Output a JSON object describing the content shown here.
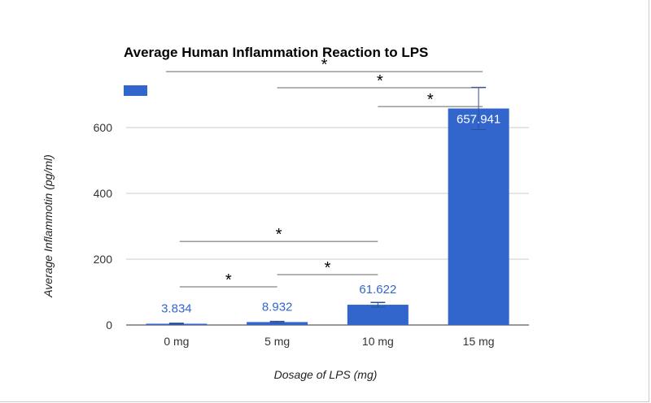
{
  "chart_data": {
    "type": "bar",
    "title": "Average Human Inflammation Reaction to LPS",
    "xlabel": "Dosage of LPS (mg)",
    "ylabel": "Average Inflammotin (pg/ml)",
    "categories": [
      "0 mg",
      "5 mg",
      "10 mg",
      "15 mg"
    ],
    "values": [
      3.834,
      8.932,
      61.622,
      657.941
    ],
    "data_labels": [
      "3.834",
      "8.932",
      "61.622",
      "657.941"
    ],
    "error": [
      1.5,
      2,
      7,
      64
    ],
    "ylim": [
      0,
      700
    ],
    "yticks": [
      0,
      200,
      400,
      600
    ],
    "grid": true,
    "legend": {
      "placement": "top-left",
      "entries": [
        ""
      ]
    },
    "bar_color": "#3366cc",
    "significance": [
      {
        "from": "0 mg",
        "to": "15 mg",
        "y": 770,
        "label": "*"
      },
      {
        "from": "5 mg",
        "to": "15 mg",
        "y": 721,
        "label": "*"
      },
      {
        "from": "10 mg",
        "to": "15 mg",
        "y": 664,
        "label": "*"
      },
      {
        "from": "0 mg",
        "to": "10 mg",
        "y": 254,
        "label": "*"
      },
      {
        "from": "5 mg",
        "to": "10 mg",
        "y": 153,
        "label": "*"
      },
      {
        "from": "0 mg",
        "to": "5 mg",
        "y": 116,
        "label": "*"
      }
    ]
  }
}
